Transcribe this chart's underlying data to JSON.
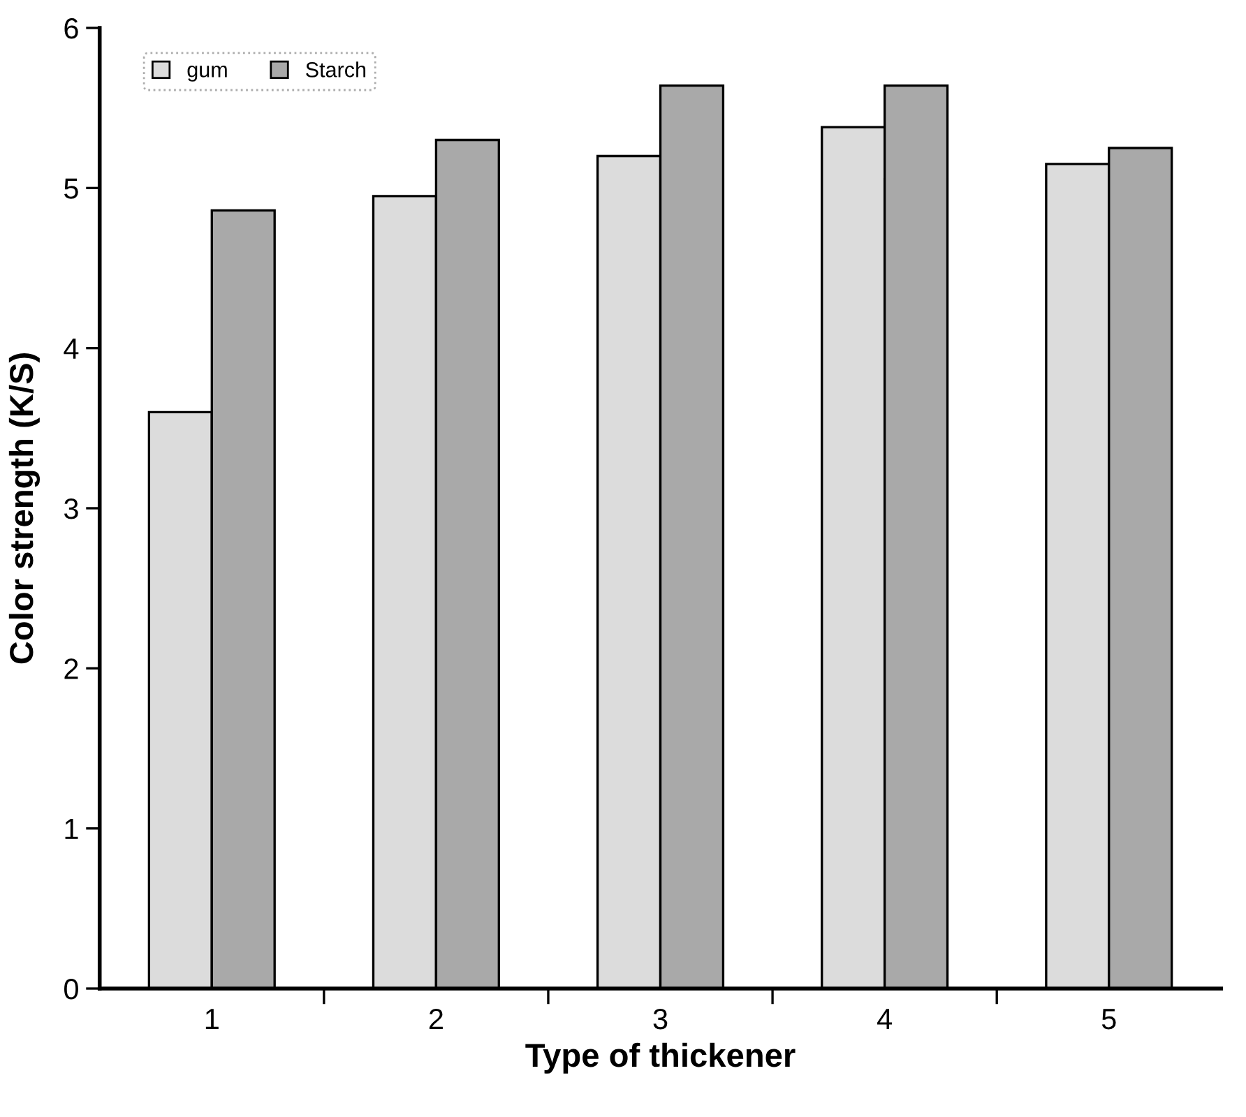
{
  "chart_data": {
    "type": "bar",
    "xlabel": "Type of thickener",
    "ylabel": "Color strength (K/S)",
    "categories": [
      "1",
      "2",
      "3",
      "4",
      "5"
    ],
    "series": [
      {
        "name": "gum",
        "color": "#dcdcdc",
        "values": [
          3.6,
          4.95,
          5.2,
          5.38,
          5.15
        ]
      },
      {
        "name": "Starch",
        "color": "#a9a9a9",
        "values": [
          4.86,
          5.3,
          5.64,
          5.64,
          5.25
        ]
      }
    ],
    "ylim": [
      0,
      6
    ],
    "yticks": [
      0,
      1,
      2,
      3,
      4,
      5,
      6
    ],
    "grid": false,
    "legend": "top left"
  }
}
